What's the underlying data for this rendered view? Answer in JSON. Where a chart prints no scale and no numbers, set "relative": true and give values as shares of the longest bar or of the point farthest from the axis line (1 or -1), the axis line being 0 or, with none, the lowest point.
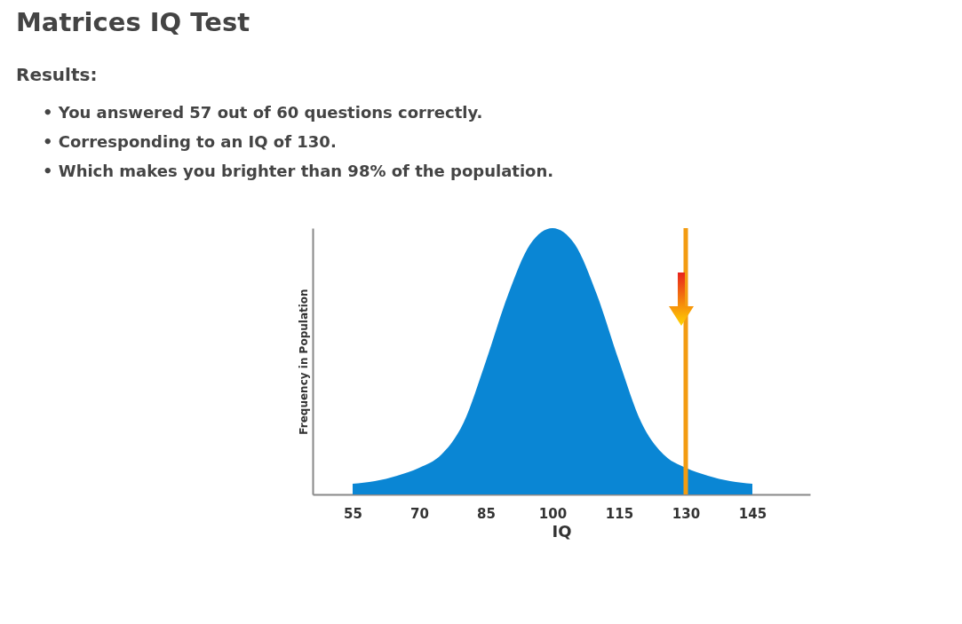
{
  "chart_data": {
    "type": "area",
    "title": "Matrices IQ Test",
    "subtitle": "Results:",
    "annotations": [
      "• You answered 57 out of 60 questions correctly.",
      "• Corresponding to an IQ of 130.",
      "• Which makes you brighter than 98% of the population."
    ],
    "xlabel": "IQ",
    "ylabel": "Frequency in Population",
    "relative": true,
    "x": [
      55,
      60,
      65,
      70,
      75,
      80,
      85,
      90,
      95,
      100,
      105,
      110,
      115,
      120,
      125,
      130,
      135,
      140,
      145
    ],
    "series": [
      {
        "color": "#0a86d4",
        "values": [
          0.04,
          0.05,
          0.07,
          0.1,
          0.15,
          0.27,
          0.5,
          0.75,
          0.94,
          1,
          0.94,
          0.75,
          0.5,
          0.27,
          0.15,
          0.1,
          0.07,
          0.05,
          0.04
        ]
      }
    ],
    "xlim": [
      46,
      158
    ],
    "xticks": [
      55,
      70,
      85,
      100,
      115,
      130,
      145
    ],
    "grid": false,
    "ref_lines": [
      {
        "axis": "x",
        "value": 130,
        "color": "#f39c12"
      }
    ]
  }
}
